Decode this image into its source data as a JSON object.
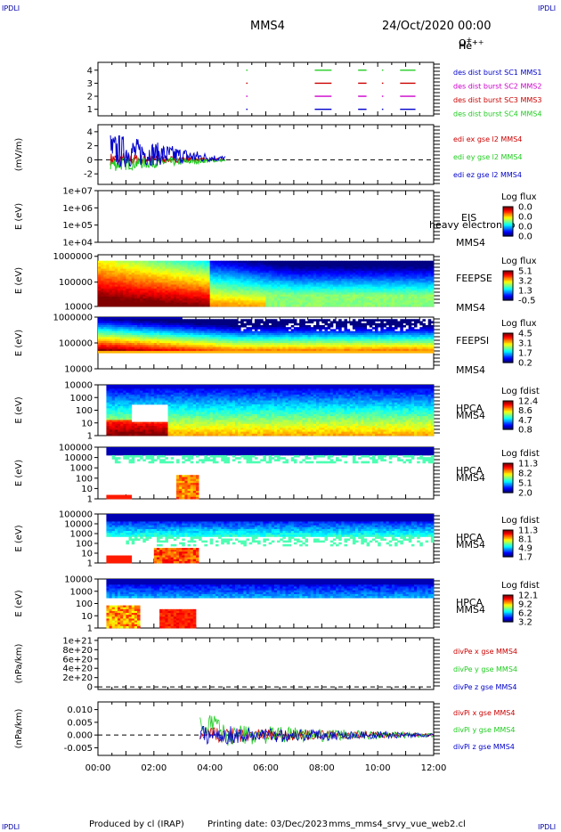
{
  "header": {
    "corner_label": "IPDLI",
    "spacecraft": "MMS4",
    "date": "24/Oct/2020 00:00"
  },
  "footer": {
    "produced_by": "Produced by cl (IRAP)",
    "printing_date": "Printing date: 03/Dec/2023",
    "file": "mms_mms4_srvy_vue_web2.cl"
  },
  "colors": {
    "red": "#cc0000",
    "green": "#22cc22",
    "blue": "#0000cc",
    "magenta": "#cc00cc"
  },
  "chart_data": [
    {
      "type": "line",
      "panel": "burst",
      "x_ticks": [
        "00:00",
        "02:00",
        "04:00",
        "06:00",
        "08:00",
        "10:00",
        "12:00"
      ],
      "y_ticks": [
        "1",
        "2",
        "3",
        "4"
      ],
      "series": [
        {
          "name": "des dist burst SC1 MMS1",
          "color": "#0000cc",
          "level": 1
        },
        {
          "name": "des dist burst SC2 MMS2",
          "color": "#cc00cc",
          "level": 2
        },
        {
          "name": "des dist burst SC3 MMS3",
          "color": "#cc0000",
          "level": 3
        },
        {
          "name": "des dist burst SC4 MMS4",
          "color": "#22cc22",
          "level": 4
        }
      ],
      "bursts_hours": [
        [
          5.3,
          5.33
        ],
        [
          7.75,
          8.35
        ],
        [
          9.3,
          9.6
        ],
        [
          10.15,
          10.2
        ],
        [
          10.8,
          11.35
        ]
      ]
    },
    {
      "type": "line",
      "panel": "edi_e",
      "ylabel": "(mV/m)",
      "y_ticks": [
        "-2",
        "0",
        "2",
        "4"
      ],
      "ylim": [
        -3.5,
        5
      ],
      "series": [
        {
          "name": "edi ex gse l2 MMS4",
          "color": "#cc0000"
        },
        {
          "name": "edi ey gse l2 MMS4",
          "color": "#22cc22"
        },
        {
          "name": "edi ez gse l2 MMS4",
          "color": "#0000cc"
        }
      ]
    },
    {
      "type": "heatmap",
      "panel": "eis",
      "ylabel": "E (eV)",
      "y_ticks": [
        "1e+04",
        "1e+05",
        "1e+06",
        "1e+07"
      ],
      "instrument": "EIS",
      "extra_label": "heavy electron to",
      "spacecraft": "MMS4",
      "cbar_title": "Log flux",
      "cbar_ticks": [
        "0.0",
        "0.0",
        "0.0",
        "0.0"
      ]
    },
    {
      "type": "heatmap",
      "panel": "feepse",
      "ylabel": "E (eV)",
      "y_ticks": [
        "10000",
        "100000",
        "1000000"
      ],
      "instrument": "FEEPSE",
      "spacecraft": "MMS4",
      "cbar_title": "Log flux",
      "cbar_ticks": [
        "5.1",
        "3.2",
        "1.3",
        "-0.5"
      ]
    },
    {
      "type": "heatmap",
      "panel": "feepsi",
      "ylabel": "E (eV)",
      "y_ticks": [
        "10000",
        "100000",
        "1000000"
      ],
      "instrument": "FEEPSI",
      "spacecraft": "MMS4",
      "cbar_title": "Log flux",
      "cbar_ticks": [
        "4.5",
        "3.1",
        "1.7",
        "0.2"
      ]
    },
    {
      "type": "heatmap",
      "panel": "hpca_h",
      "ylabel": "E (eV)",
      "y_ticks": [
        "1",
        "10",
        "100",
        "1000",
        "10000"
      ],
      "instrument": "HPCA",
      "spacecraft": "MMS4",
      "species": "H",
      "species_sup": "+",
      "cbar_title": "Log fdist",
      "cbar_ticks": [
        "12.4",
        "8.6",
        "4.7",
        "0.8"
      ]
    },
    {
      "type": "heatmap",
      "panel": "hpca_he",
      "ylabel": "E (eV)",
      "y_ticks": [
        "1",
        "10",
        "100",
        "1000",
        "10000",
        "100000"
      ],
      "instrument": "HPCA",
      "spacecraft": "MMS4",
      "species": "He",
      "species_sup": "+",
      "cbar_title": "Log fdist",
      "cbar_ticks": [
        "11.3",
        "8.2",
        "5.1",
        "2.0"
      ]
    },
    {
      "type": "heatmap",
      "panel": "hpca_hepp",
      "ylabel": "E (eV)",
      "y_ticks": [
        "1",
        "10",
        "100",
        "1000",
        "10000",
        "100000"
      ],
      "instrument": "HPCA",
      "spacecraft": "MMS4",
      "species": "He",
      "species_sup": "++",
      "cbar_title": "Log fdist",
      "cbar_ticks": [
        "11.3",
        "8.1",
        "4.9",
        "1.7"
      ]
    },
    {
      "type": "heatmap",
      "panel": "hpca_o",
      "ylabel": "E (eV)",
      "y_ticks": [
        "1",
        "10",
        "100",
        "1000",
        "10000"
      ],
      "instrument": "HPCA",
      "spacecraft": "MMS4",
      "species": "O",
      "species_sup": "+",
      "cbar_title": "Log fdist",
      "cbar_ticks": [
        "12.1",
        "9.2",
        "6.2",
        "3.2"
      ]
    },
    {
      "type": "line",
      "panel": "divpe",
      "ylabel": "(nPa/km)",
      "y_ticks": [
        "0",
        "2e+20",
        "4e+20",
        "6e+20",
        "8e+20",
        "1e+21"
      ],
      "ylim": [
        0,
        1e+21
      ],
      "series": [
        {
          "name": "divPe x gse MMS4",
          "color": "#cc0000"
        },
        {
          "name": "divPe y gse MMS4",
          "color": "#22cc22"
        },
        {
          "name": "divPe z gse MMS4",
          "color": "#0000cc"
        }
      ]
    },
    {
      "type": "line",
      "panel": "divpi",
      "ylabel": "(nPa/km)",
      "y_ticks": [
        "-0.005",
        "0.000",
        "0.005",
        "0.010"
      ],
      "ylim": [
        -0.008,
        0.013
      ],
      "x_ticks": [
        "00:00",
        "02:00",
        "04:00",
        "06:00",
        "08:00",
        "10:00",
        "12:00"
      ],
      "series": [
        {
          "name": "divPi x gse MMS4",
          "color": "#cc0000"
        },
        {
          "name": "divPi y gse MMS4",
          "color": "#22cc22"
        },
        {
          "name": "divPi z gse MMS4",
          "color": "#0000cc"
        }
      ]
    }
  ]
}
